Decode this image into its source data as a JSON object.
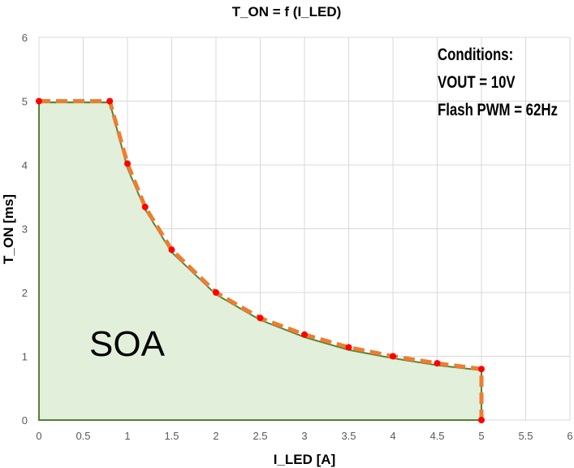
{
  "chart_data": {
    "type": "area",
    "title": "T_ON = f (I_LED)",
    "xlabel": "I_LED [A]",
    "ylabel": "T_ON [ms]",
    "xlim": [
      0,
      6
    ],
    "ylim": [
      0,
      6
    ],
    "xticks": [
      "0",
      "0.5",
      "1",
      "1.5",
      "2",
      "2.5",
      "3",
      "3.5",
      "4",
      "4.5",
      "5",
      "5.5",
      "6"
    ],
    "yticks": [
      "0",
      "1",
      "2",
      "3",
      "4",
      "5",
      "6"
    ],
    "grid": true,
    "legend": "none",
    "series": [
      {
        "role": "region",
        "color": "#548235",
        "fill": "#e2efda",
        "x": [
          0,
          0,
          0.8,
          1,
          1.2,
          1.5,
          2,
          2.5,
          3,
          3.5,
          4,
          4.5,
          5,
          5
        ],
        "y": [
          0,
          4.98,
          4.98,
          3.95,
          3.3,
          2.63,
          1.97,
          1.57,
          1.3,
          1.1,
          0.97,
          0.86,
          0.78,
          0
        ]
      },
      {
        "role": "limit",
        "color": "#ed7d31",
        "marker_color": "#ff0000",
        "x": [
          0,
          0.8,
          1,
          1.2,
          1.5,
          2,
          2.5,
          3,
          3.5,
          4,
          4.5,
          5,
          5
        ],
        "y": [
          5,
          5,
          4.02,
          3.34,
          2.67,
          2.0,
          1.6,
          1.34,
          1.14,
          1.0,
          0.89,
          0.8,
          0
        ]
      }
    ],
    "annotations": {
      "region_label": "SOA",
      "conditions": [
        "Conditions:",
        "VOUT = 10V",
        "Flash PWM = 62Hz"
      ]
    }
  }
}
